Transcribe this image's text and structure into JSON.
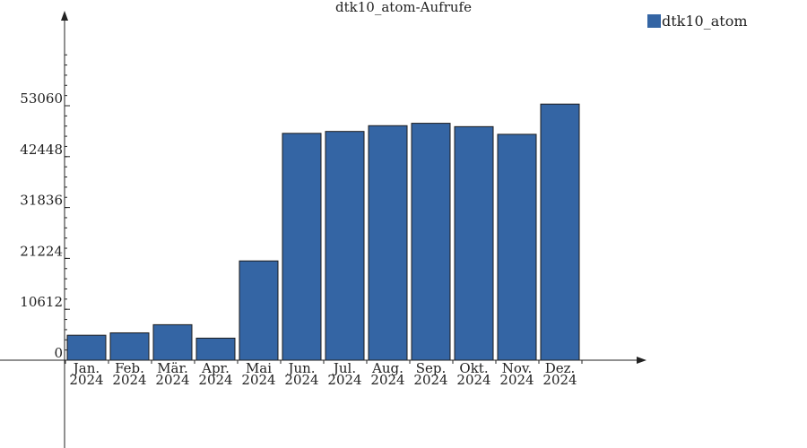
{
  "chart_data": {
    "type": "bar",
    "title": "dtk10_atom-Aufrufe",
    "xlabel": "",
    "ylabel": "",
    "categories": [
      [
        "Jan.",
        "2024"
      ],
      [
        "Feb.",
        "2024"
      ],
      [
        "Mär.",
        "2024"
      ],
      [
        "Apr.",
        "2024"
      ],
      [
        "Mai",
        "2024"
      ],
      [
        "Jun.",
        "2024"
      ],
      [
        "Jul.",
        "2024"
      ],
      [
        "Aug.",
        "2024"
      ],
      [
        "Sep.",
        "2024"
      ],
      [
        "Okt.",
        "2024"
      ],
      [
        "Nov.",
        "2024"
      ],
      [
        "Dez.",
        "2024"
      ]
    ],
    "series": [
      {
        "name": "dtk10_atom",
        "color": "#3465a4",
        "values": [
          5200,
          5700,
          7400,
          4600,
          20700,
          47300,
          47700,
          48900,
          49400,
          48700,
          47100,
          53400
        ]
      }
    ],
    "yticks": [
      0,
      10612,
      21224,
      31836,
      42448,
      53060
    ],
    "ylim": [
      0,
      63672
    ],
    "grid": false,
    "legend_position": "top-right"
  }
}
